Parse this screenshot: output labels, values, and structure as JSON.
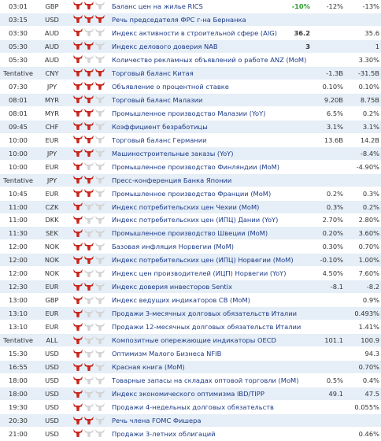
{
  "table": {
    "rows": [
      {
        "time": "03:01",
        "currency": "GBP",
        "importance": 2,
        "event": "Баланс цен на жилье RICS",
        "actual": "-10%",
        "actual_color": "#2e9a2e",
        "forecast": "-12%",
        "previous": "-13%"
      },
      {
        "time": "03:15",
        "currency": "USD",
        "importance": 3,
        "event": "Речь председателя ФРС г-на Бернанка"
      },
      {
        "time": "03:30",
        "currency": "AUD",
        "importance": 1,
        "event": "Индекс активности в строительной сфере (AIG)",
        "actual": "36.2",
        "previous": "35.6"
      },
      {
        "time": "05:30",
        "currency": "AUD",
        "importance": 2,
        "event": "Индекс делового доверия NAB",
        "actual": "3",
        "previous": "1"
      },
      {
        "time": "05:30",
        "currency": "AUD",
        "importance": 1,
        "event": "Количество рекламных объявлений о работе ANZ (MoM)",
        "previous": "3.30%"
      },
      {
        "time": "Tentative",
        "currency": "CNY",
        "importance": 3,
        "event": "Торговый баланс Китая",
        "forecast": "-1.3B",
        "previous": "-31.5B"
      },
      {
        "time": "07:30",
        "currency": "JPY",
        "importance": 3,
        "event": "Объявление о процентной ставке",
        "forecast": "0.10%",
        "previous": "0.10%"
      },
      {
        "time": "08:01",
        "currency": "MYR",
        "importance": 2,
        "event": "Торговый баланс Малазии",
        "forecast": "9.20B",
        "previous": "8.75B"
      },
      {
        "time": "08:01",
        "currency": "MYR",
        "importance": 2,
        "event": "Промышленное производство Малазии (YoY)",
        "forecast": "6.5%",
        "previous": "0.2%"
      },
      {
        "time": "09:45",
        "currency": "CHF",
        "importance": 2,
        "event": "Коэффициент безработицы",
        "forecast": "3.1%",
        "previous": "3.1%"
      },
      {
        "time": "10:00",
        "currency": "EUR",
        "importance": 2,
        "event": "Торговый баланс Германии",
        "forecast": "13.6B",
        "previous": "14.2B"
      },
      {
        "time": "10:00",
        "currency": "JPY",
        "importance": 2,
        "event": "Машиностроительные заказы (YoY)",
        "previous": "-8.4%"
      },
      {
        "time": "10:00",
        "currency": "EUR",
        "importance": 1,
        "event": "Промышленное производство Финляндии (MoM)",
        "previous": "-4.90%"
      },
      {
        "time": "Tentative",
        "currency": "JPY",
        "importance": 2,
        "event": "Пресс-конференция Банка Японии"
      },
      {
        "time": "10:45",
        "currency": "EUR",
        "importance": 2,
        "event": "Промышленное производство Франции (MoM)",
        "forecast": "0.2%",
        "previous": "0.3%"
      },
      {
        "time": "11:00",
        "currency": "CZK",
        "importance": 1,
        "event": "Индекс потребительских цен Чехии (MoM)",
        "forecast": "0.3%",
        "previous": "0.2%"
      },
      {
        "time": "11:00",
        "currency": "DKK",
        "importance": 1,
        "event": "Индекс потребительских цен (ИПЦ) Дании (YoY)",
        "forecast": "2.70%",
        "previous": "2.80%"
      },
      {
        "time": "11:30",
        "currency": "SEK",
        "importance": 1,
        "event": "Промышленное производство Швеции (MoM)",
        "forecast": "0.20%",
        "previous": "3.60%"
      },
      {
        "time": "12:00",
        "currency": "NOK",
        "importance": 2,
        "event": "Базовая инфляция Норвегии (MoM)",
        "forecast": "0.30%",
        "previous": "0.70%"
      },
      {
        "time": "12:00",
        "currency": "NOK",
        "importance": 2,
        "event": "Индекс потребительских цен (ИПЦ) Норвегии (MoM)",
        "forecast": "-0.10%",
        "previous": "1.00%"
      },
      {
        "time": "12:00",
        "currency": "NOK",
        "importance": 1,
        "event": "Индекс цен производителей (ИЦП) Норвегии (YoY)",
        "forecast": "4.50%",
        "previous": "7.60%"
      },
      {
        "time": "12:30",
        "currency": "EUR",
        "importance": 2,
        "event": "Индекс доверия инвесторов Sentix",
        "forecast": "-8.1",
        "previous": "-8.2"
      },
      {
        "time": "13:00",
        "currency": "GBP",
        "importance": 1,
        "event": "Индекс ведущих индикаторов CB (MoM)",
        "previous": "0.9%"
      },
      {
        "time": "13:10",
        "currency": "EUR",
        "importance": 1,
        "event": "Продажи 3-месячных долговых обязательств Италии",
        "previous": "0.493%"
      },
      {
        "time": "13:10",
        "currency": "EUR",
        "importance": 1,
        "event": "Продажи 12-месячных долговых обязательств Италии",
        "previous": "1.41%"
      },
      {
        "time": "Tentative",
        "currency": "ALL",
        "importance": 1,
        "event": "Композитные опережающие индикаторы OECD",
        "forecast": "101.1",
        "previous": "100.9"
      },
      {
        "time": "15:30",
        "currency": "USD",
        "importance": 1,
        "event": "Оптимизм Малого Бизнеса NFIB",
        "previous": "94.3"
      },
      {
        "time": "16:55",
        "currency": "USD",
        "importance": 2,
        "event": "Красная книга (MoM)",
        "previous": "0.70%"
      },
      {
        "time": "18:00",
        "currency": "USD",
        "importance": 1,
        "event": "Товарные запасы на складах оптовой торговли (MoM)",
        "forecast": "0.5%",
        "previous": "0.4%"
      },
      {
        "time": "18:00",
        "currency": "USD",
        "importance": 1,
        "event": "Индекс экономического оптимизма IBD/TIPP",
        "forecast": "49.1",
        "previous": "47.5"
      },
      {
        "time": "19:30",
        "currency": "USD",
        "importance": 1,
        "event": "Продажи 4-недельных долговых обязательств",
        "previous": "0.055%"
      },
      {
        "time": "20:30",
        "currency": "USD",
        "importance": 2,
        "event": "Речь члена FOMC Фишера"
      },
      {
        "time": "21:00",
        "currency": "USD",
        "importance": 1,
        "event": "Продажи 3-летних облигаций",
        "previous": "0.46%"
      }
    ]
  }
}
